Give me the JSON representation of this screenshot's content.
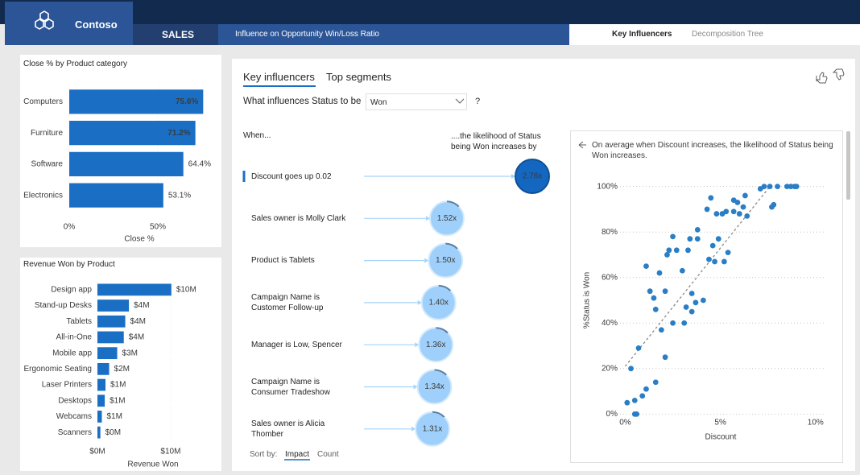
{
  "header": {
    "brand": "Contoso",
    "section": "SALES",
    "page_title": "Influence on Opportunity Win/Loss Ratio",
    "tabs": [
      "Key Influencers",
      "Decomposition Tree"
    ]
  },
  "chart_data": [
    {
      "type": "bar",
      "orientation": "horizontal",
      "title": "Close % by Product category",
      "categories": [
        "Computers",
        "Furniture",
        "Software",
        "Electronics"
      ],
      "values": [
        75.6,
        71.2,
        64.4,
        53.1
      ],
      "value_labels": [
        "75.6%",
        "71.2%",
        "64.4%",
        "53.1%"
      ],
      "color": "#1a6fc4",
      "xlim": [
        0,
        85
      ],
      "xticks": [
        {
          "value": 0,
          "label": "0%"
        },
        {
          "value": 50,
          "label": "50%"
        }
      ],
      "x_label": "Close %"
    },
    {
      "type": "bar",
      "orientation": "horizontal",
      "title": "Revenue Won by Product",
      "categories": [
        "Design app",
        "Stand-up Desks",
        "Tablets",
        "All-in-One",
        "Mobile app",
        "Ergonomic Seating",
        "Laser Printers",
        "Desktops",
        "Webcams",
        "Scanners"
      ],
      "values": [
        10.1,
        4.3,
        3.8,
        3.6,
        2.7,
        1.6,
        1.1,
        1.0,
        0.6,
        0.4
      ],
      "value_labels": [
        "$10M",
        "$4M",
        "$4M",
        "$4M",
        "$3M",
        "$2M",
        "$1M",
        "$1M",
        "$1M",
        "$0M"
      ],
      "color": "#1a6fc4",
      "xlim": [
        0,
        11
      ],
      "xticks": [
        {
          "value": 0,
          "label": "$0M"
        },
        {
          "value": 10,
          "label": "$10M"
        }
      ],
      "x_label": "Revenue Won"
    },
    {
      "type": "scatter",
      "x_label": "Discount",
      "y_label": "%Status is Won",
      "color": "#2a7ec6",
      "x": [
        0.1,
        0.3,
        0.5,
        0.6,
        0.5,
        0.7,
        0.9,
        1.1,
        1.1,
        1.3,
        1.5,
        1.6,
        1.6,
        1.8,
        1.9,
        2.1,
        2.1,
        2.2,
        2.3,
        2.5,
        2.5,
        2.7,
        3.0,
        3.1,
        3.2,
        3.3,
        3.4,
        3.5,
        3.5,
        3.7,
        3.8,
        3.8,
        4.1,
        4.3,
        4.4,
        4.5,
        4.6,
        4.7,
        4.8,
        4.9,
        5.1,
        5.2,
        5.3,
        5.4,
        5.7,
        5.7,
        5.9,
        6.0,
        6.2,
        6.3,
        6.4,
        7.1,
        7.3,
        7.6,
        7.7,
        7.8,
        8.0,
        8.5,
        8.7,
        8.9,
        9.0
      ],
      "values": [
        5,
        20,
        6,
        0,
        0,
        29,
        8,
        11,
        65,
        54,
        51,
        46,
        14,
        62,
        37,
        54,
        25,
        70,
        72,
        40,
        78,
        72,
        63,
        40,
        47,
        72,
        77,
        45,
        53,
        49,
        81,
        77,
        50,
        90,
        68,
        95,
        74,
        67,
        88,
        77,
        88,
        67,
        89,
        71,
        94,
        89,
        93,
        88,
        91,
        96,
        87,
        99,
        100,
        100,
        91,
        92,
        100,
        100,
        100,
        100,
        100
      ],
      "trendline": {
        "x": [
          0,
          7.6
        ],
        "values": [
          21,
          100
        ]
      },
      "xlim": [
        -0.4,
        10.6
      ],
      "ylim": [
        -2,
        102
      ],
      "xticks": [
        {
          "value": 0,
          "label": "0%"
        },
        {
          "value": 5,
          "label": "5%"
        },
        {
          "value": 10,
          "label": "10%"
        }
      ],
      "yticks": [
        {
          "value": 0,
          "label": "0%"
        },
        {
          "value": 20,
          "label": "20%"
        },
        {
          "value": 40,
          "label": "40%"
        },
        {
          "value": 60,
          "label": "60%"
        },
        {
          "value": 80,
          "label": "80%"
        },
        {
          "value": 100,
          "label": "100%"
        }
      ],
      "grid": true
    }
  ],
  "key_influencers": {
    "tabs": [
      "Key influencers",
      "Top segments"
    ],
    "question": "What influences Status to be",
    "selected": "Won",
    "help": "?",
    "when_header": "When...",
    "effect_header": "....the likelihood of Status being Won increases by",
    "factors": [
      "Discount goes up 0.02",
      "Sales owner is Molly Clark",
      "Product is Tablets",
      "Campaign Name is Customer Follow-up",
      "Manager is Low, Spencer",
      "Campaign Name is Consumer Tradeshow",
      "Sales owner is Alicia Thomber"
    ],
    "values": [
      2.76,
      1.52,
      1.5,
      1.4,
      1.36,
      1.34,
      1.31
    ],
    "value_labels": [
      "2.76x",
      "1.52x",
      "1.50x",
      "1.40x",
      "1.36x",
      "1.34x",
      "1.31x"
    ],
    "sort_label": "Sort by:",
    "sort_options": [
      "Impact",
      "Count"
    ],
    "detail": "On average when Discount increases, the likelihood of Status being Won increases."
  }
}
